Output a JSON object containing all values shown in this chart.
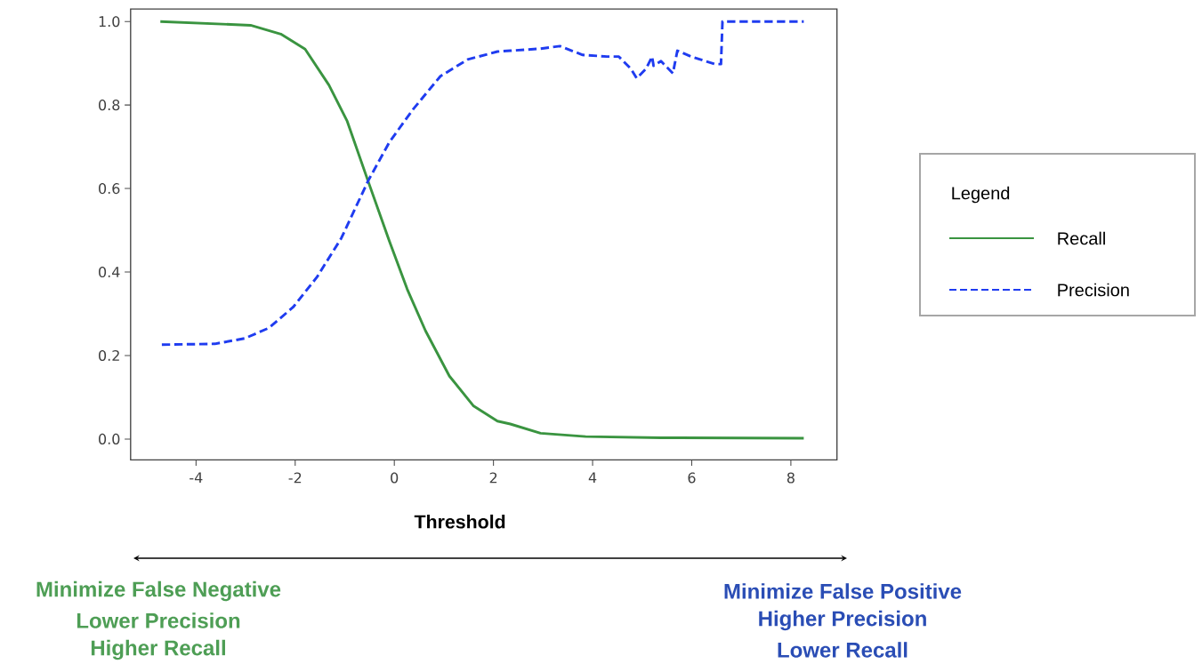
{
  "chart_data": {
    "type": "line",
    "xlabel": "Threshold",
    "legend_title": "Legend",
    "legend": "right",
    "xlim": [
      -5.32,
      8.93
    ],
    "ylim": [
      -0.05,
      1.03
    ],
    "xticks": [
      -4,
      -2,
      0,
      2,
      4,
      6,
      8
    ],
    "yticks": [
      {
        "value": 0,
        "label": "0.0"
      },
      {
        "value": 0.2,
        "label": "0.2"
      },
      {
        "value": 0.4,
        "label": "0.4"
      },
      {
        "value": 0.6,
        "label": "0.6"
      },
      {
        "value": 0.8,
        "label": "0.8"
      },
      {
        "value": 1,
        "label": "1.0"
      }
    ],
    "series": [
      {
        "name": "Recall",
        "color": "#3a9440",
        "line_style": "solid",
        "x": [
          -4.72,
          -2.9,
          -2.29,
          -1.8,
          -1.32,
          -0.95,
          -0.53,
          -0.1,
          0.26,
          0.63,
          1.11,
          1.6,
          2.08,
          2.34,
          2.95,
          3.86,
          5.38,
          8.26
        ],
        "values": [
          1.0,
          0.991,
          0.97,
          0.934,
          0.848,
          0.761,
          0.618,
          0.474,
          0.359,
          0.259,
          0.151,
          0.079,
          0.043,
          0.036,
          0.014,
          0.006,
          0.003,
          0.002
        ]
      },
      {
        "name": "Precision",
        "color": "#1f3cf0",
        "line_style": "dashed",
        "x": [
          -4.69,
          -3.62,
          -3.02,
          -2.53,
          -2.04,
          -1.56,
          -1.07,
          -0.53,
          -0.1,
          0.38,
          0.93,
          1.48,
          2.08,
          2.34,
          2.95,
          3.34,
          3.8,
          4.29,
          4.53,
          4.77,
          4.89,
          5.08,
          5.2,
          5.23,
          5.38,
          5.62,
          5.71,
          5.99,
          6.47,
          6.59,
          6.62,
          8.26
        ],
        "values": [
          0.226,
          0.228,
          0.241,
          0.266,
          0.316,
          0.388,
          0.481,
          0.618,
          0.711,
          0.79,
          0.869,
          0.909,
          0.928,
          0.93,
          0.935,
          0.941,
          0.92,
          0.916,
          0.916,
          0.887,
          0.864,
          0.887,
          0.916,
          0.894,
          0.905,
          0.876,
          0.93,
          0.916,
          0.898,
          0.898,
          1.0,
          1.0
        ]
      }
    ],
    "annotations": [
      "Minimize False Negative",
      "Lower Precision",
      "Higher Recall",
      "Minimize False Positive",
      "Higher Precision",
      "Lower Recall"
    ]
  }
}
